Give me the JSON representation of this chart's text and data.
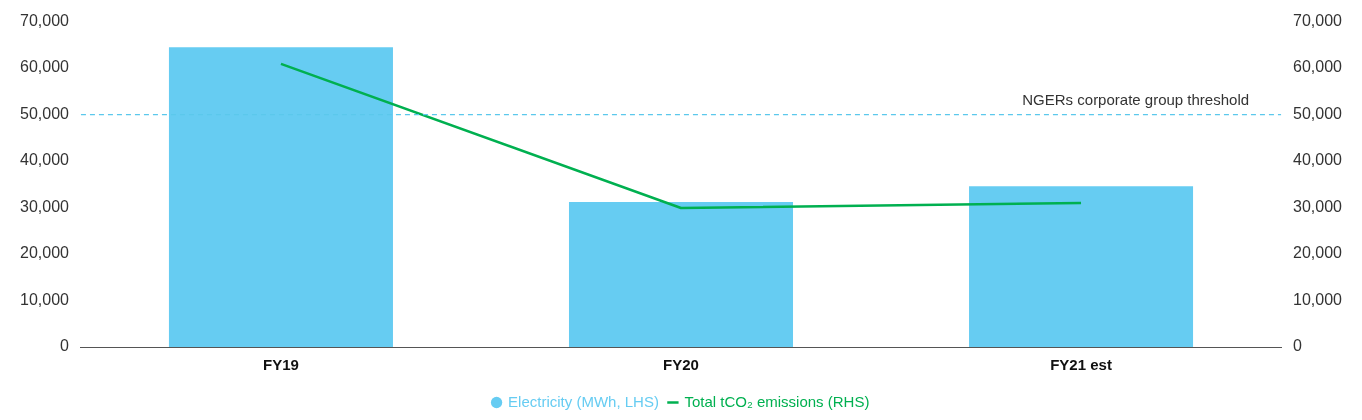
{
  "chart_data": {
    "type": "bar",
    "categories": [
      "FY19",
      "FY20",
      "FY21 est"
    ],
    "series": [
      {
        "name": "Electricity (MWh, LHS)",
        "color": "#66ccf2",
        "values": [
          64500,
          31200,
          34600
        ]
      },
      {
        "name": "Total tCO₂ emissions (RHS)",
        "type": "line",
        "axis": "y2",
        "color": "#00b050",
        "values": [
          60900,
          29900,
          31000
        ]
      }
    ],
    "ylim": [
      0,
      70000
    ],
    "yticks": [
      {
        "value": 0,
        "label": "0"
      },
      {
        "value": 10000,
        "label": "10,000"
      },
      {
        "value": 20000,
        "label": "20,000"
      },
      {
        "value": 30000,
        "label": "30,000"
      },
      {
        "value": 40000,
        "label": "40,000"
      },
      {
        "value": 50000,
        "label": "50,000"
      },
      {
        "value": 60000,
        "label": "60,000"
      },
      {
        "value": 70000,
        "label": "70,000"
      }
    ],
    "y2lim": [
      0,
      70000
    ],
    "y2ticks": [
      {
        "value": 0,
        "label": "0"
      },
      {
        "value": 10000,
        "label": "10,000"
      },
      {
        "value": 20000,
        "label": "20,000"
      },
      {
        "value": 30000,
        "label": "30,000"
      },
      {
        "value": 40000,
        "label": "40,000"
      },
      {
        "value": 50000,
        "label": "50,000"
      },
      {
        "value": 60000,
        "label": "60,000"
      },
      {
        "value": 70000,
        "label": "70,000"
      }
    ],
    "ref_lines": [
      {
        "axis": "y",
        "value": 50000,
        "label": "NGERs corporate group threshold",
        "color": "#5bc8ec",
        "line_style": "dashed"
      }
    ],
    "grid": false,
    "legend": "bottom",
    "marker": "none"
  }
}
